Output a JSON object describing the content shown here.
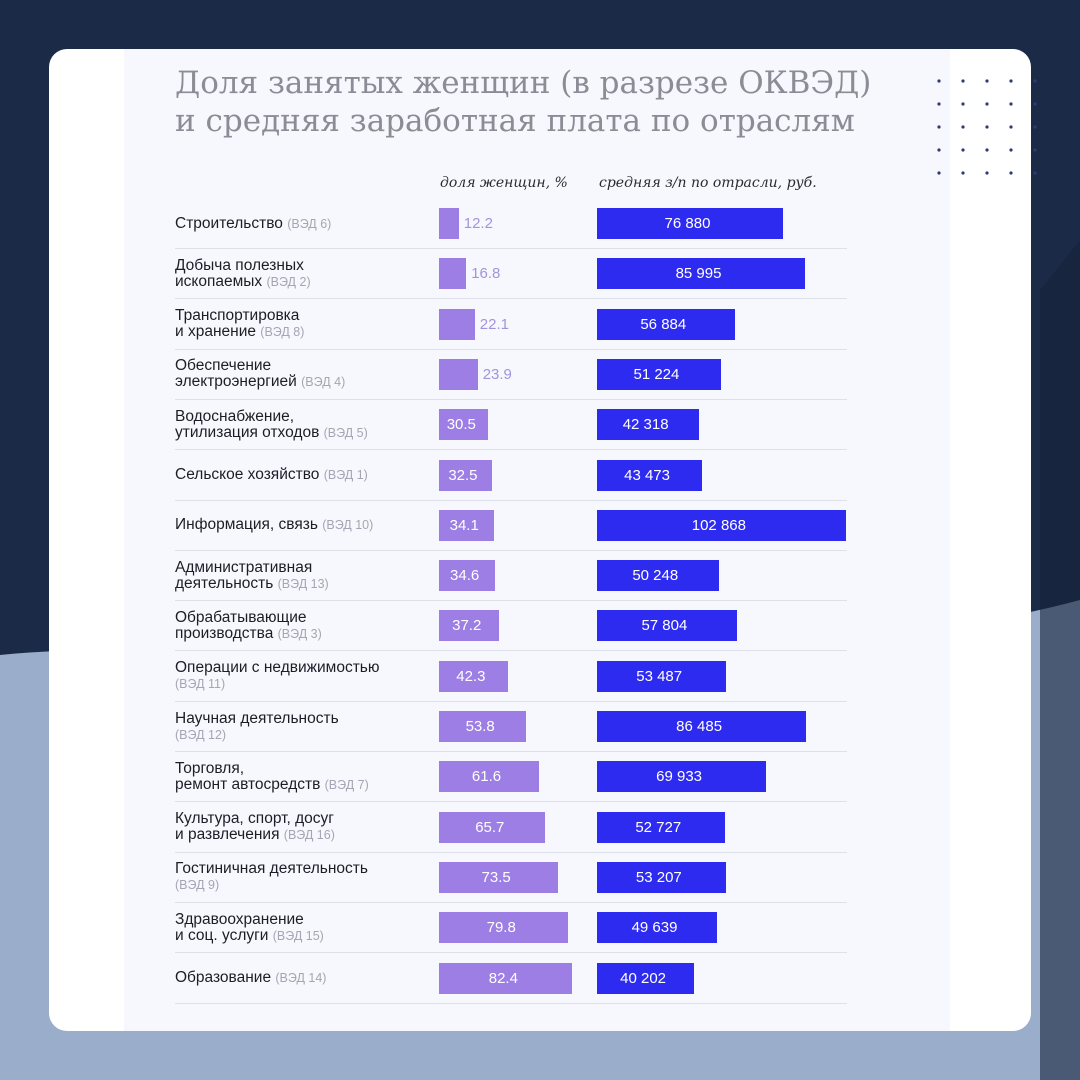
{
  "colors": {
    "background": "#1b2b47",
    "background_light": "#9aaecb",
    "card": "#ffffff",
    "share_bar": "#9d7ee4",
    "salary_bar": "#2e2bf0"
  },
  "chart_data": {
    "type": "bar",
    "title": "Доля занятых женщин (в разрезе ОКВЭД) и средняя заработная плата по отраслям",
    "columns": [
      "доля женщин, %",
      "средняя з/п по отрасли, руб."
    ],
    "share_max": 100,
    "salary_max": 102868,
    "rows": [
      {
        "label": "Строительство",
        "code": "(ВЭД 6)",
        "share": 12.2,
        "share_label": "12.2",
        "salary": 76880,
        "salary_label": "76 880"
      },
      {
        "label": "Добыча полезных\nископаемых",
        "code": "(ВЭД 2)",
        "share": 16.8,
        "share_label": "16.8",
        "salary": 85995,
        "salary_label": "85 995"
      },
      {
        "label": "Транспортировка\nи хранение",
        "code": "(ВЭД 8)",
        "share": 22.1,
        "share_label": "22.1",
        "salary": 56884,
        "salary_label": "56 884"
      },
      {
        "label": "Обеспечение\nэлектроэнергией",
        "code": "(ВЭД 4)",
        "share": 23.9,
        "share_label": "23.9",
        "salary": 51224,
        "salary_label": "51 224"
      },
      {
        "label": "Водоснабжение,\nутилизация отходов",
        "code": "(ВЭД 5)",
        "share": 30.5,
        "share_label": "30.5",
        "salary": 42318,
        "salary_label": "42 318"
      },
      {
        "label": "Сельское хозяйство",
        "code": "(ВЭД 1)",
        "share": 32.5,
        "share_label": "32.5",
        "salary": 43473,
        "salary_label": "43 473"
      },
      {
        "label": "Информация, связь",
        "code": "(ВЭД 10)",
        "share": 34.1,
        "share_label": "34.1",
        "salary": 102868,
        "salary_label": "102 868"
      },
      {
        "label": "Административная\nдеятельность",
        "code": "(ВЭД 13)",
        "share": 34.6,
        "share_label": "34.6",
        "salary": 50248,
        "salary_label": "50 248"
      },
      {
        "label": "Обрабатывающие\nпроизводства",
        "code": "(ВЭД 3)",
        "share": 37.2,
        "share_label": "37.2",
        "salary": 57804,
        "salary_label": "57 804"
      },
      {
        "label": "Операции с недвижимостью\n",
        "code": "(ВЭД 11)",
        "share": 42.3,
        "share_label": "42.3",
        "salary": 53487,
        "salary_label": "53 487"
      },
      {
        "label": "Научная деятельность\n",
        "code": "(ВЭД 12)",
        "share": 53.8,
        "share_label": "53.8",
        "salary": 86485,
        "salary_label": "86 485"
      },
      {
        "label": "Торговля,\nремонт автосредств",
        "code": "(ВЭД 7)",
        "share": 61.6,
        "share_label": "61.6",
        "salary": 69933,
        "salary_label": "69 933"
      },
      {
        "label": "Культура, спорт, досуг\nи развлечения",
        "code": "(ВЭД 16)",
        "share": 65.7,
        "share_label": "65.7",
        "salary": 52727,
        "salary_label": "52 727"
      },
      {
        "label": "Гостиничная деятельность\n",
        "code": "(ВЭД 9)",
        "share": 73.5,
        "share_label": "73.5",
        "salary": 53207,
        "salary_label": "53 207"
      },
      {
        "label": "Здравоохранение\nи соц. услуги",
        "code": "(ВЭД 15)",
        "share": 79.8,
        "share_label": "79.8",
        "salary": 49639,
        "salary_label": "49 639"
      },
      {
        "label": "Образование",
        "code": "(ВЭД 14)",
        "share": 82.4,
        "share_label": "82.4",
        "salary": 40202,
        "salary_label": "40 202"
      }
    ]
  }
}
